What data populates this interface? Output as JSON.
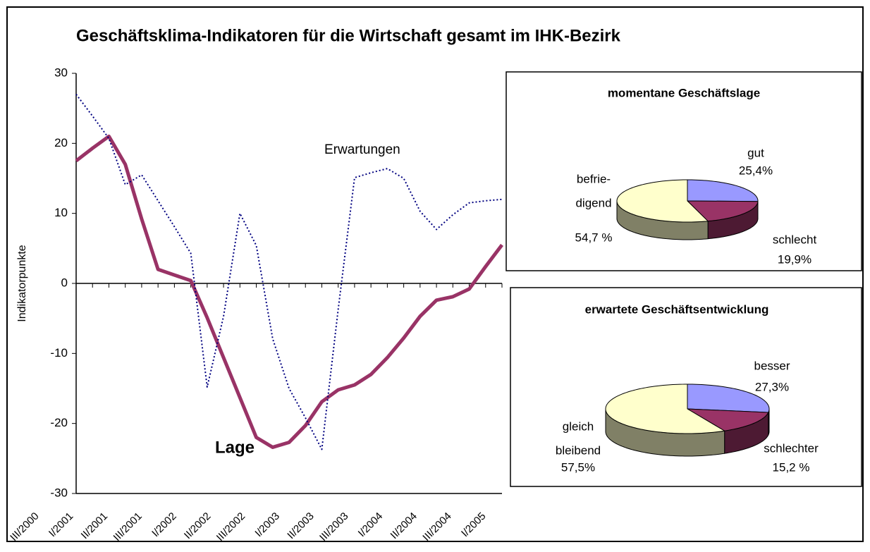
{
  "chart_data": [
    {
      "type": "line",
      "title": "Geschäftsklima-Indikatoren für die Wirtschaft gesamt im IHK-Bezirk",
      "y_label": "Indikatorpunkte",
      "categories": [
        "III/2000",
        null,
        "I/2001",
        null,
        "II/2001",
        null,
        "III/2001",
        null,
        "I/2002",
        null,
        "II/2002",
        null,
        "III/2002",
        null,
        "I/2003",
        null,
        "II/2003",
        null,
        "III/2003",
        null,
        "I/2004",
        null,
        "II/2004",
        null,
        "III/2004",
        null,
        "I/2005"
      ],
      "series": [
        {
          "name": "Lage",
          "color": "#993366",
          "dashed": false,
          "values": [
            17.5,
            19.3,
            21,
            17,
            9.2,
            2,
            1.2,
            0.4,
            -4.9,
            -10.6,
            -16.3,
            -22,
            -23.4,
            -22.7,
            -20.3,
            -16.9,
            -15.2,
            -14.5,
            -13,
            -10.6,
            -7.8,
            -4.7,
            -2.4,
            -1.9,
            -0.8,
            2.4,
            5.5
          ]
        },
        {
          "name": "Erwartungen",
          "color": "#000080",
          "dashed": true,
          "values": [
            27,
            23.9,
            20.7,
            14.1,
            15.5,
            11.8,
            8.1,
            4.3,
            -14.8,
            -4.7,
            10,
            5.4,
            -7.9,
            -15,
            -19.2,
            -23.7,
            -3.7,
            15.1,
            15.8,
            16.4,
            15,
            10.3,
            7.7,
            9.8,
            11.5,
            11.8,
            12
          ]
        }
      ],
      "ylim": [
        -30,
        30
      ],
      "yticks": [
        -30,
        -20,
        -10,
        0,
        10,
        20,
        30
      ],
      "grid": false
    },
    {
      "type": "pie3d",
      "title": "momentane Geschäftslage",
      "categories": [
        [
          "gut"
        ],
        [
          "schlecht"
        ],
        [
          "befrie-",
          "digend"
        ]
      ],
      "values": [
        25.4,
        19.9,
        54.7
      ],
      "value_labels": [
        "25,4%",
        "19,9%",
        "54,7 %"
      ],
      "colors": [
        "#9999ff",
        "#993366",
        "#ffffcc"
      ]
    },
    {
      "type": "pie3d",
      "title": "erwartete Geschäftsentwicklung",
      "categories": [
        [
          "besser"
        ],
        [
          "schlechter"
        ],
        [
          "gleich",
          "bleibend"
        ]
      ],
      "values": [
        27.3,
        15.2,
        57.5
      ],
      "value_labels": [
        "27,3%",
        "15,2 %",
        "57,5%"
      ],
      "colors": [
        "#9999ff",
        "#993366",
        "#ffffcc"
      ]
    }
  ]
}
